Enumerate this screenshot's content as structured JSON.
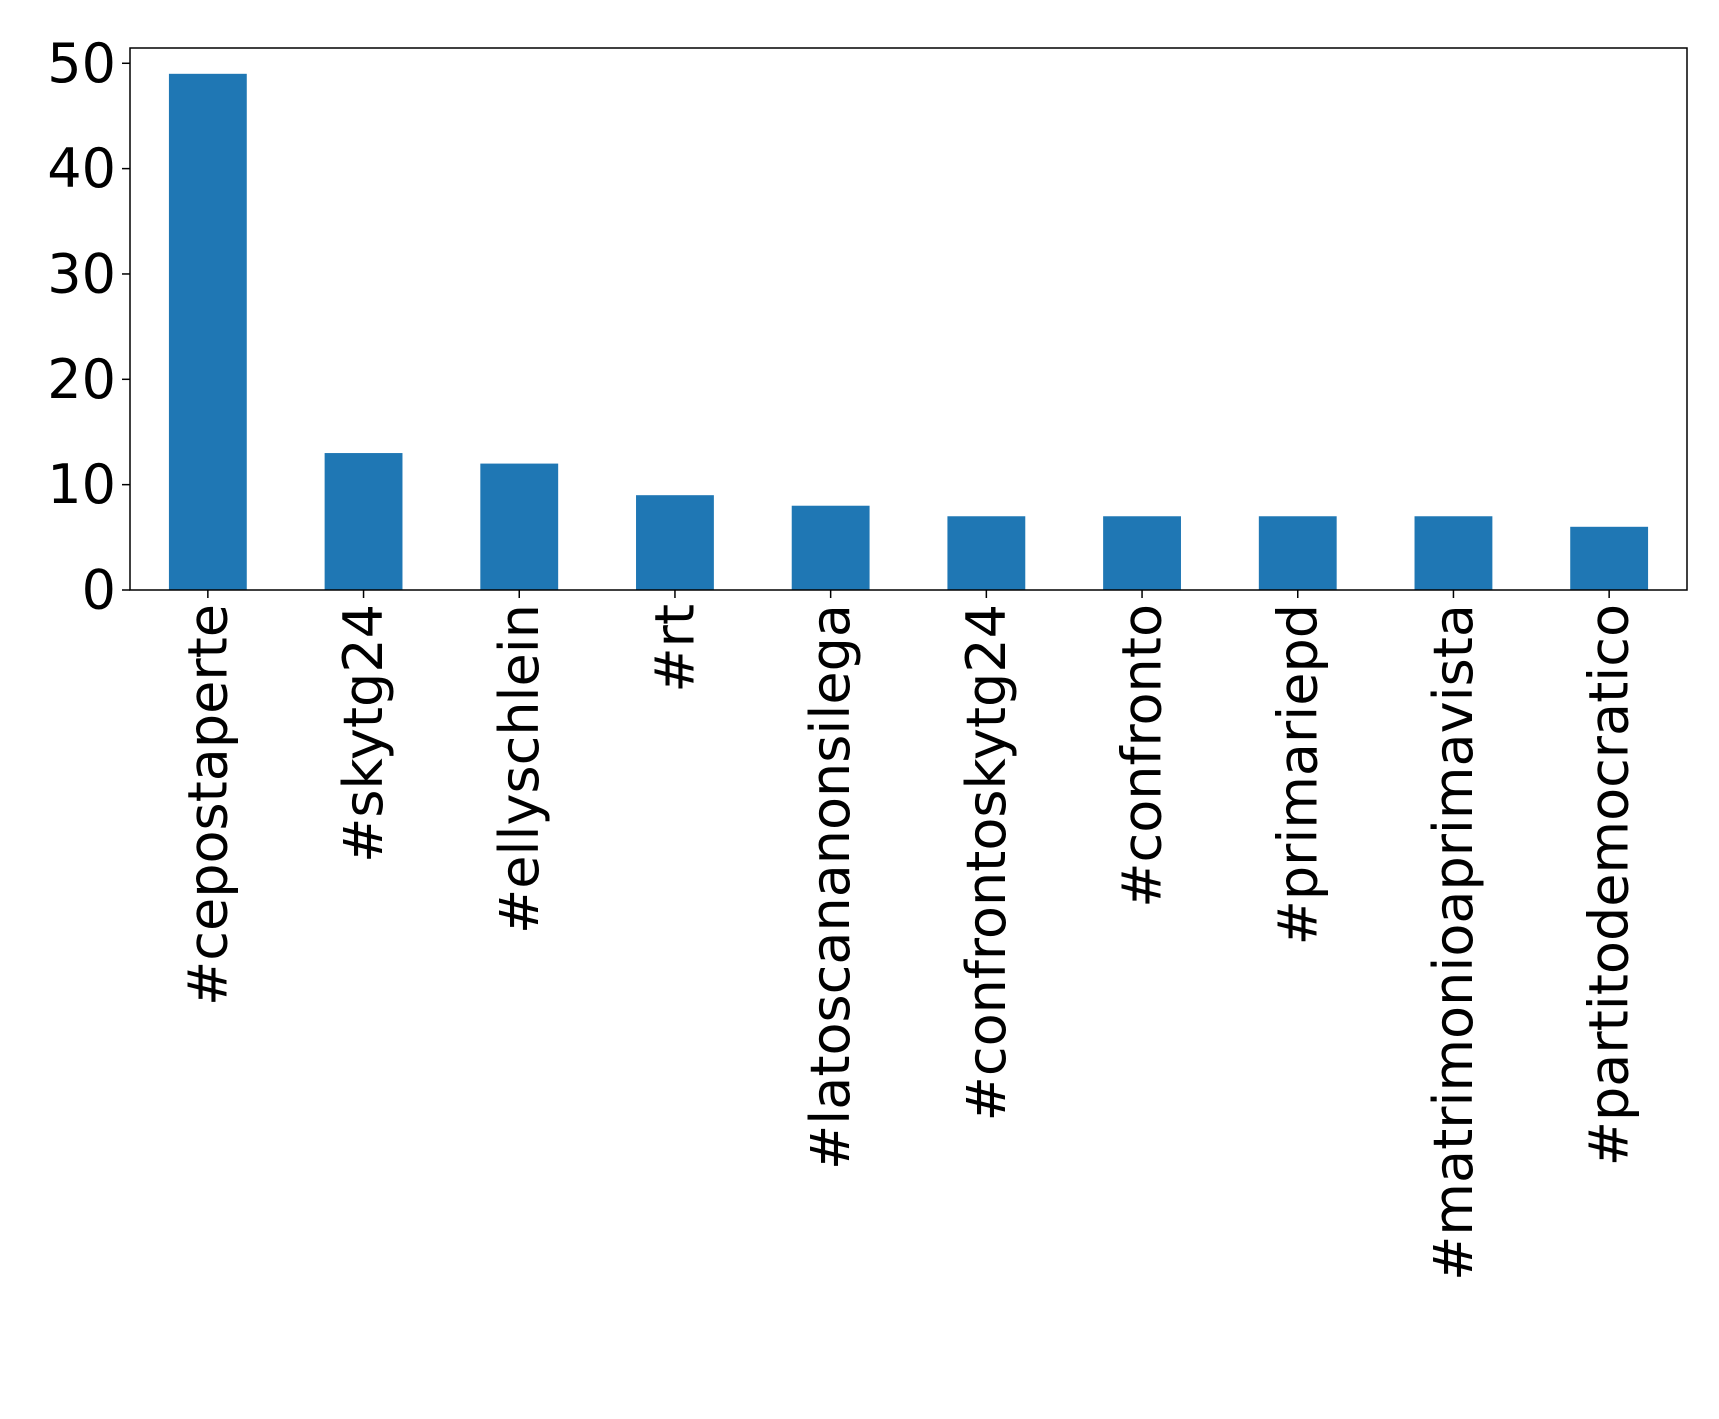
{
  "chart_data": {
    "type": "bar",
    "title": "",
    "xlabel": "",
    "ylabel": "",
    "categories": [
      "#cepostaperte",
      "#skytg24",
      "#ellyschlein",
      "#rt",
      "#latoscananonsilega",
      "#confrontoskytg24",
      "#confronto",
      "#primariepd",
      "#matrimonioaprimavista",
      "#partitodemocratico"
    ],
    "values": [
      49,
      13,
      12,
      9,
      8,
      7,
      7,
      7,
      7,
      6
    ],
    "ylim": [
      0,
      51.45
    ],
    "yticks": [
      "0",
      "10",
      "20",
      "30",
      "40",
      "50"
    ],
    "grid": false,
    "legend": "none",
    "colors": {
      "bar": "#1f77b4",
      "axis": "#000000",
      "background": "#ffffff"
    }
  }
}
